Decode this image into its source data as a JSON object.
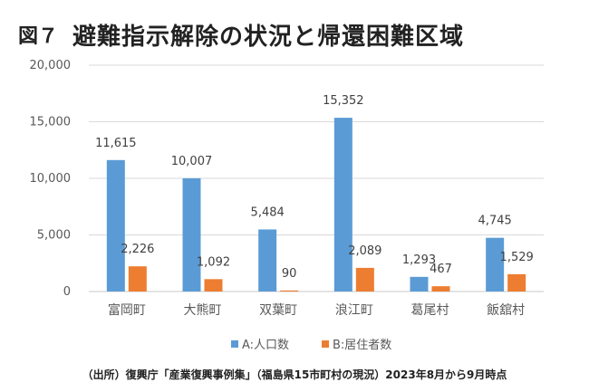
{
  "figure_label": "図７",
  "source_note": "（出所）復興庁「産業復興事例集」（福島県15市町村の現況）2023年8月から9月時点",
  "chart_data": {
    "type": "bar",
    "title": "避難指示解除の状況と帰還困難区域",
    "categories": [
      "富岡町",
      "大熊町",
      "双葉町",
      "浪江町",
      "葛尾村",
      "飯舘村"
    ],
    "series": [
      {
        "name": "A:人口数",
        "color": "#5B9BD5",
        "values": [
          11615,
          10007,
          5484,
          15352,
          1293,
          4745
        ]
      },
      {
        "name": "B:居住者数",
        "color": "#ED7D31",
        "values": [
          2226,
          1092,
          90,
          2089,
          467,
          1529
        ]
      }
    ],
    "data_labels": [
      [
        "11,615",
        "10,007",
        "5,484",
        "15,352",
        "1,293",
        "4,745"
      ],
      [
        "2,226",
        "1,092",
        "90",
        "2,089",
        "467",
        "1,529"
      ]
    ],
    "ylim": [
      0,
      20000
    ],
    "yticks": [
      0,
      5000,
      10000,
      15000,
      20000
    ],
    "ytick_labels": [
      "0",
      "5,000",
      "10,000",
      "15,000",
      "20,000"
    ],
    "grid": true,
    "legend_position": "bottom"
  }
}
